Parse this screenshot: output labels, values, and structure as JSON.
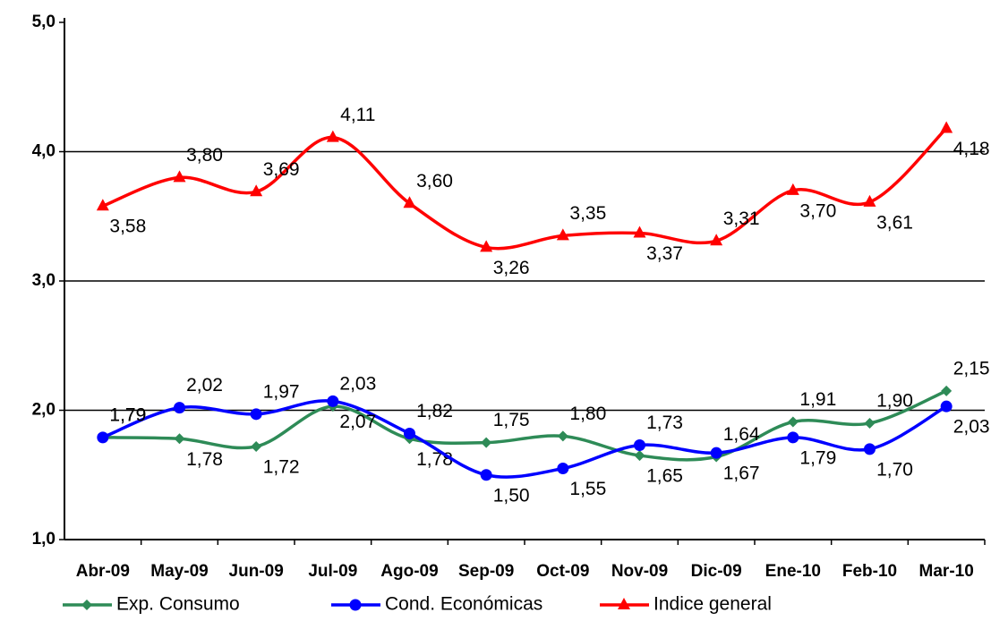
{
  "chart_data": {
    "type": "line",
    "categories": [
      "Abr-09",
      "May-09",
      "Jun-09",
      "Jul-09",
      "Ago-09",
      "Sep-09",
      "Oct-09",
      "Nov-09",
      "Dic-09",
      "Ene-10",
      "Feb-10",
      "Mar-10"
    ],
    "series": [
      {
        "name": "Exp. Consumo",
        "color": "#2e8b57",
        "marker": "diamond",
        "values": [
          1.79,
          1.78,
          1.72,
          2.03,
          1.78,
          1.75,
          1.8,
          1.65,
          1.64,
          1.91,
          1.9,
          2.15
        ],
        "value_labels": [
          "1,79",
          "1,78",
          "1,72",
          "2,03",
          "1,78",
          "1,75",
          "1,80",
          "1,65",
          "1,64",
          "1,91",
          "1,90",
          "2,15"
        ]
      },
      {
        "name": "Cond. Económicas",
        "color": "#0000ff",
        "marker": "circle",
        "values": [
          1.79,
          2.02,
          1.97,
          2.07,
          1.82,
          1.5,
          1.55,
          1.73,
          1.67,
          1.79,
          1.7,
          2.03
        ],
        "value_labels": [
          "1,79",
          "2,02",
          "1,97",
          "2,07",
          "1,82",
          "1,50",
          "1,55",
          "1,73",
          "1,67",
          "1,79",
          "1,70",
          "2,03"
        ]
      },
      {
        "name": "Indice general",
        "color": "#ff0000",
        "marker": "triangle",
        "values": [
          3.58,
          3.8,
          3.69,
          4.11,
          3.6,
          3.26,
          3.35,
          3.37,
          3.31,
          3.7,
          3.61,
          4.18
        ],
        "value_labels": [
          "3,58",
          "3,80",
          "3,69",
          "4,11",
          "3,60",
          "3,26",
          "3,35",
          "3,37",
          "3,31",
          "3,70",
          "3,61",
          "4,18"
        ]
      }
    ],
    "ylim": [
      1,
      5
    ],
    "yticks": [
      {
        "value": 1,
        "label": "1,0"
      },
      {
        "value": 2,
        "label": "2,0"
      },
      {
        "value": 3,
        "label": "3,0"
      },
      {
        "value": 4,
        "label": "4,0"
      },
      {
        "value": 5,
        "label": "5,0"
      }
    ],
    "grid": true,
    "legend": "bottom"
  }
}
